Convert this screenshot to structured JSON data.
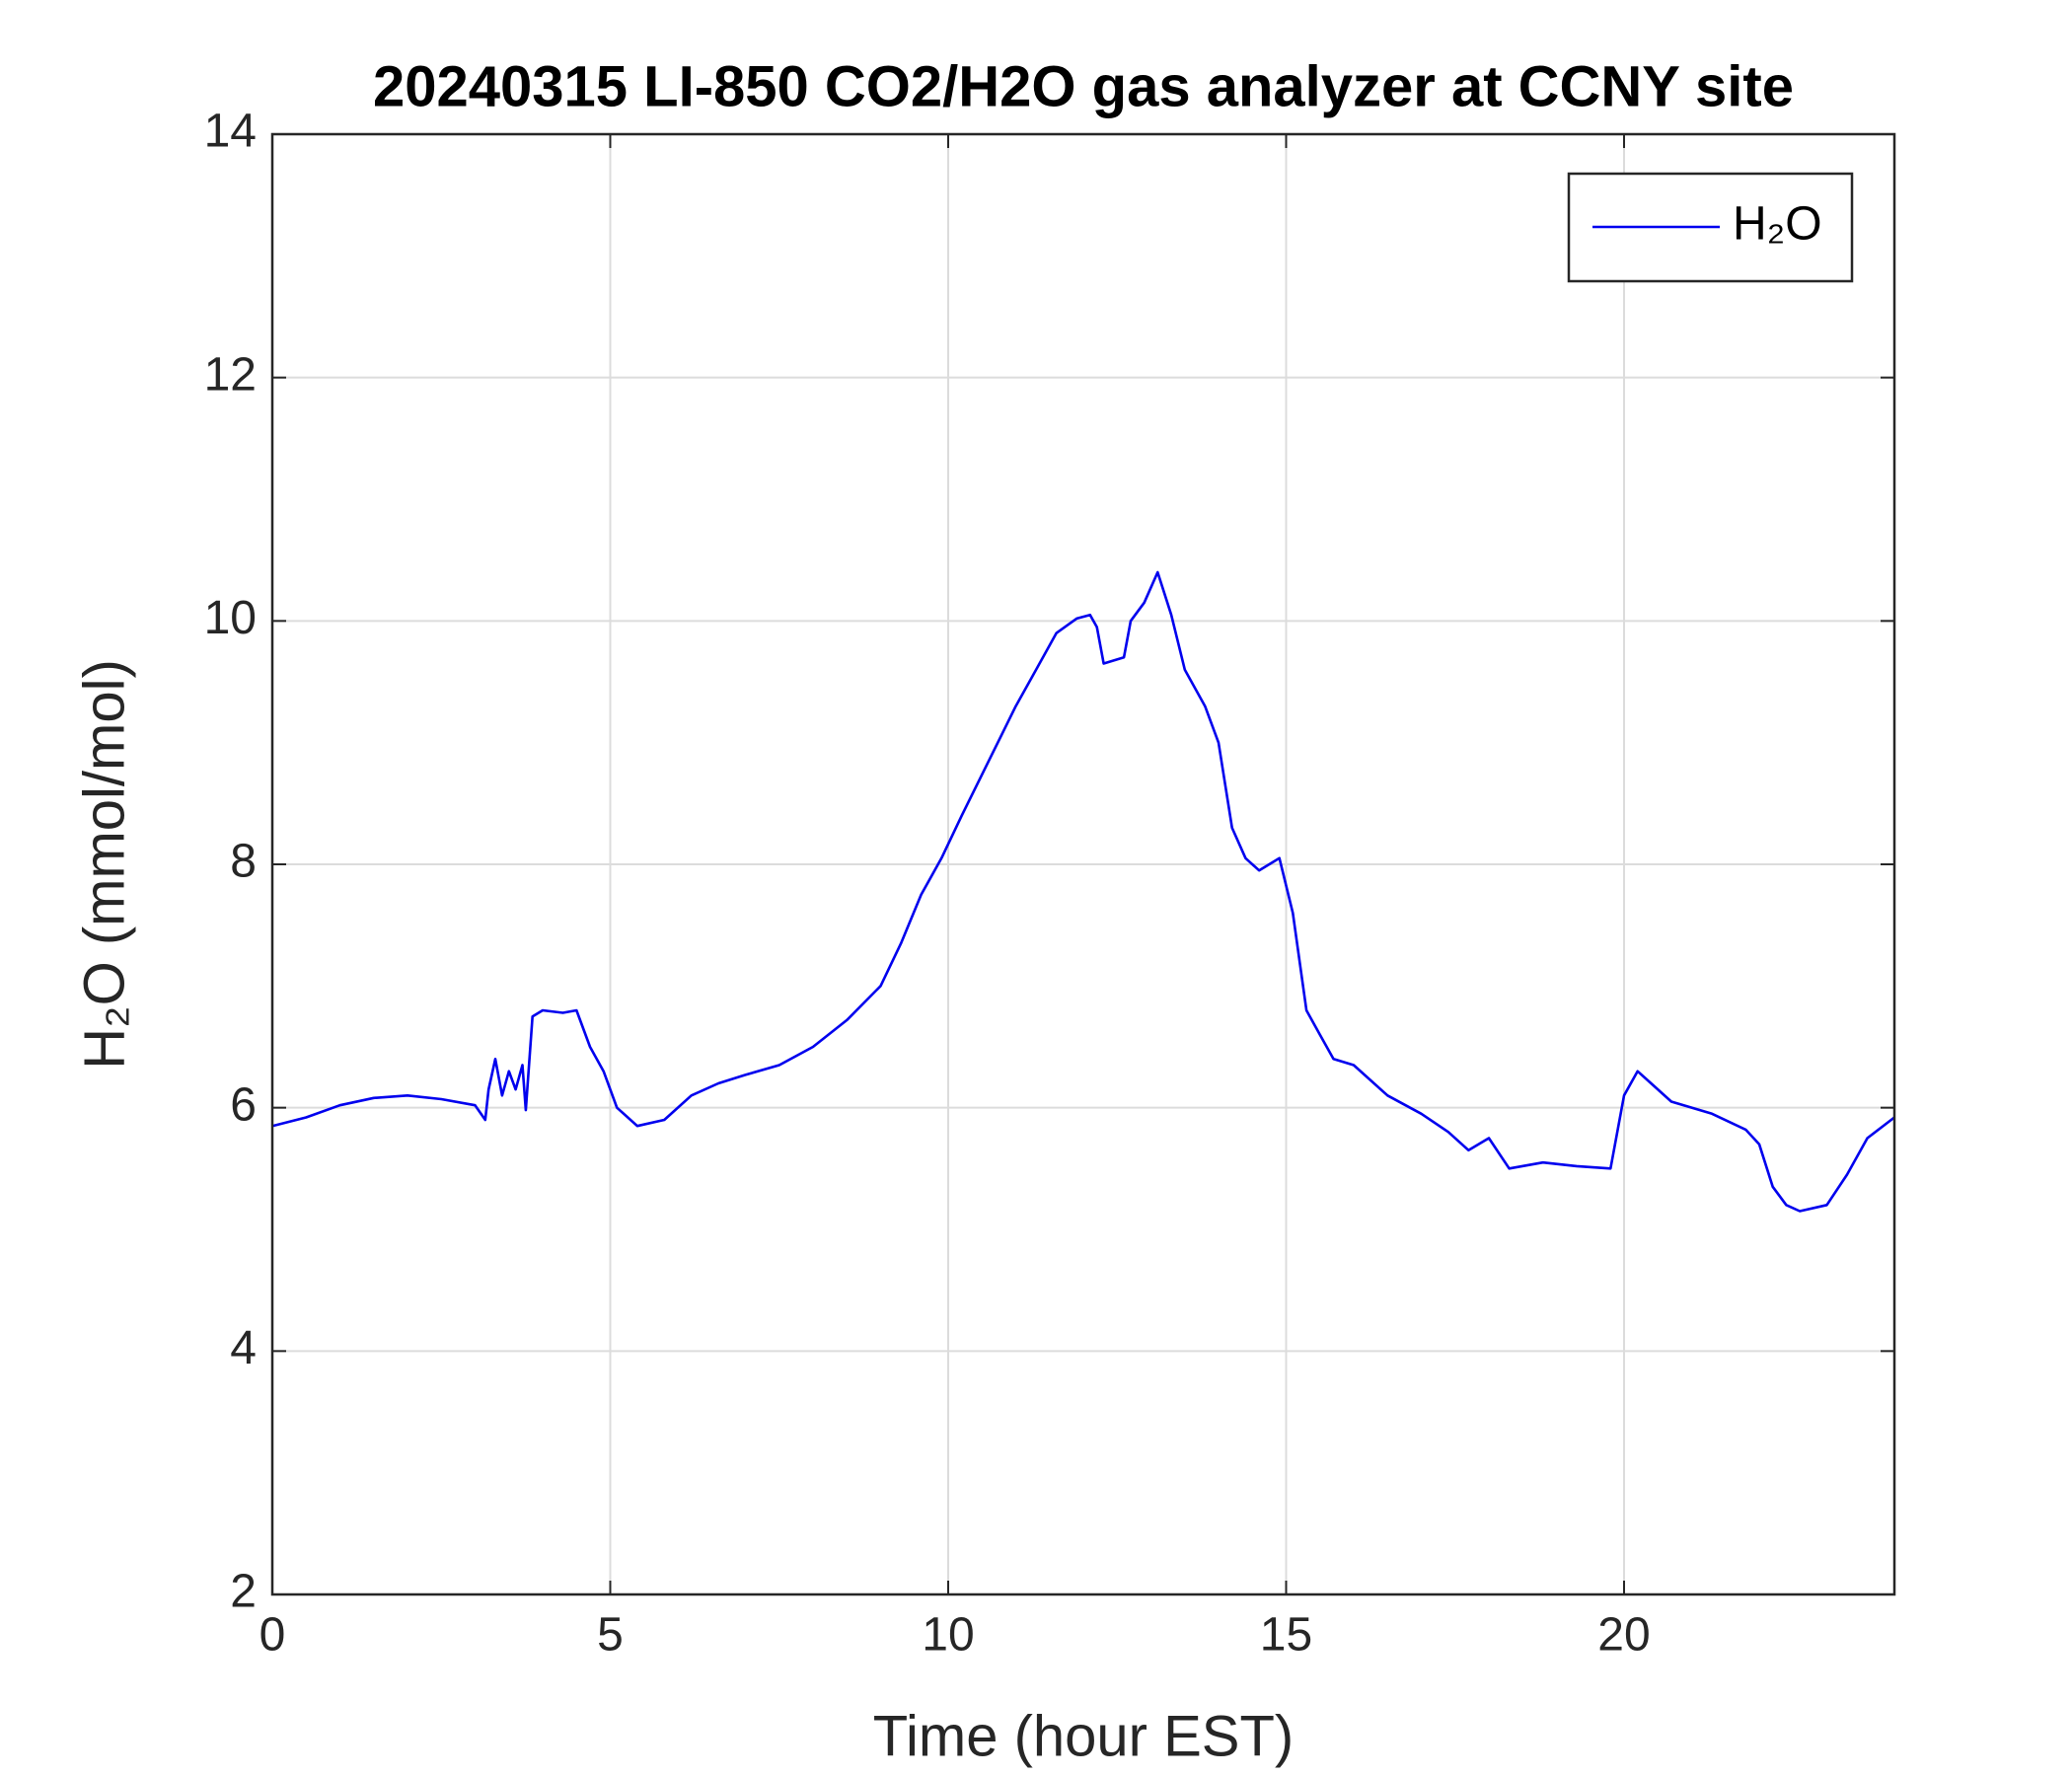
{
  "chart_data": {
    "type": "line",
    "title": "20240315 LI-850 CO2/H2O gas analyzer at CCNY site",
    "xlabel": "Time (hour EST)",
    "ylabel": "H₂O (mmol/mol)",
    "x": [
      0,
      0.5,
      1,
      1.5,
      2,
      2.5,
      3,
      3.15,
      3.2,
      3.3,
      3.4,
      3.5,
      3.6,
      3.7,
      3.75,
      3.85,
      4,
      4.3,
      4.5,
      4.7,
      4.9,
      5.1,
      5.4,
      5.8,
      6.2,
      6.6,
      7,
      7.5,
      8,
      8.5,
      9,
      9.3,
      9.6,
      9.9,
      10.2,
      10.6,
      11,
      11.3,
      11.6,
      11.9,
      12.1,
      12.2,
      12.3,
      12.6,
      12.7,
      12.9,
      13.1,
      13.3,
      13.5,
      13.8,
      14,
      14.2,
      14.4,
      14.6,
      14.9,
      15.1,
      15.3,
      15.5,
      15.7,
      16,
      16.5,
      17,
      17.4,
      17.7,
      18,
      18.3,
      18.8,
      19.3,
      19.8,
      20,
      20.2,
      20.4,
      20.7,
      21.3,
      21.8,
      22,
      22.2,
      22.4,
      22.6,
      23,
      23.3,
      23.6,
      24
    ],
    "series": [
      {
        "name": "H₂O",
        "color": "#0000ee",
        "values": [
          5.85,
          5.92,
          6.02,
          6.08,
          6.1,
          6.07,
          6.02,
          5.9,
          6.15,
          6.4,
          6.1,
          6.3,
          6.15,
          6.35,
          5.98,
          6.75,
          6.8,
          6.78,
          6.8,
          6.5,
          6.3,
          6.0,
          5.85,
          5.9,
          6.1,
          6.2,
          6.27,
          6.35,
          6.5,
          6.72,
          7.0,
          7.35,
          7.75,
          8.05,
          8.4,
          8.85,
          9.3,
          9.6,
          9.9,
          10.02,
          10.05,
          9.95,
          9.65,
          9.7,
          10.0,
          10.15,
          10.4,
          10.05,
          9.6,
          9.3,
          9.0,
          8.3,
          8.05,
          7.95,
          8.05,
          7.6,
          6.8,
          6.6,
          6.4,
          6.35,
          6.1,
          5.95,
          5.8,
          5.65,
          5.75,
          5.5,
          5.55,
          5.52,
          5.5,
          6.1,
          6.3,
          6.2,
          6.05,
          5.95,
          5.82,
          5.7,
          5.35,
          5.2,
          5.15,
          5.2,
          5.45,
          5.75,
          5.92
        ]
      }
    ],
    "xlim": [
      0,
      24
    ],
    "xticks": [
      0,
      5,
      10,
      15,
      20
    ],
    "ylim": [
      2,
      14
    ],
    "yticks": [
      2,
      4,
      6,
      8,
      10,
      12,
      14
    ],
    "grid": true,
    "legend": "northeast"
  }
}
